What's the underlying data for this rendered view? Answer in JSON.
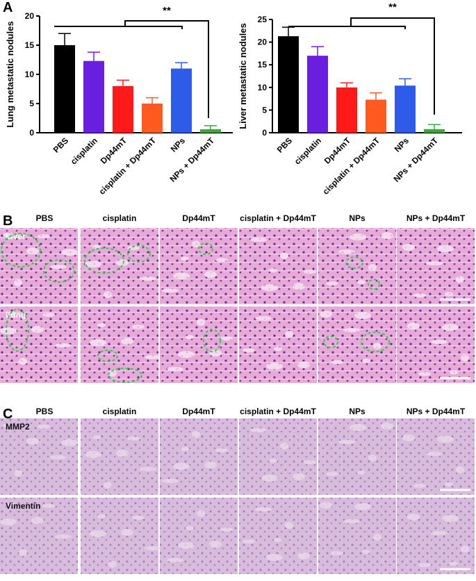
{
  "chart_data": [
    {
      "type": "bar",
      "panel_label": "A",
      "ylabel": "Lung metastatic nodules",
      "categories": [
        "PBS",
        "cisplatin",
        "Dp44mT",
        "cisplatin + Dp44mT",
        "NPs",
        "NPs + Dp44mT"
      ],
      "values": [
        15,
        12.3,
        8,
        5,
        11,
        0.6
      ],
      "errors": [
        2,
        1.5,
        1,
        1,
        1,
        0.6
      ],
      "colors": [
        "#000000",
        "#6a1fe0",
        "#ff1a1a",
        "#ff5a1f",
        "#2e5be8",
        "#3aa83a"
      ],
      "ylim": [
        0,
        20
      ],
      "yticks": [
        0,
        5,
        10,
        15,
        20
      ],
      "annotation": "**"
    },
    {
      "type": "bar",
      "ylabel": "Liver metastatic nodules",
      "categories": [
        "PBS",
        "cisplatin",
        "Dp44mT",
        "cisplatin + Dp44mT",
        "NPs",
        "NPs + Dp44mT"
      ],
      "values": [
        21.3,
        17,
        10,
        7.3,
        10.4,
        0.8
      ],
      "errors": [
        2,
        2,
        1,
        1.5,
        1.5,
        1
      ],
      "colors": [
        "#000000",
        "#6a1fe0",
        "#ff1a1a",
        "#ff5a1f",
        "#2e5be8",
        "#3aa83a"
      ],
      "ylim": [
        0,
        25
      ],
      "yticks": [
        0,
        5,
        10,
        15,
        20,
        25
      ],
      "annotation": "**"
    }
  ],
  "panel_b": {
    "label": "B",
    "columns": [
      "PBS",
      "cisplatin",
      "Dp44mT",
      "cisplatin + Dp44mT",
      "NPs",
      "NPs + Dp44mT"
    ],
    "rows": [
      "Liver",
      "Lung"
    ]
  },
  "panel_c": {
    "label": "C",
    "columns": [
      "PBS",
      "cisplatin",
      "Dp44mT",
      "cisplatin + Dp44mT",
      "NPs",
      "NPs + Dp44mT"
    ],
    "rows": [
      "MMP2",
      "Vimentin"
    ]
  }
}
